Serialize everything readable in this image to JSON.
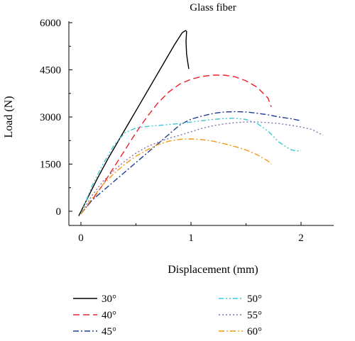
{
  "chart_data": {
    "type": "line",
    "title": "Glass fiber",
    "xlabel": "Displacement (mm)",
    "ylabel": "Load (N)",
    "xlim": [
      -0.1,
      2.3
    ],
    "ylim": [
      -400,
      6000
    ],
    "xticks": [
      0,
      1,
      2
    ],
    "yticks": [
      0,
      1500,
      3000,
      4500,
      6000
    ],
    "grid": false,
    "legend_position": "bottom",
    "series": [
      {
        "name": "30°",
        "color": "#000000",
        "dash": "solid",
        "points": [
          [
            -0.02,
            -150
          ],
          [
            0.05,
            350
          ],
          [
            0.15,
            1050
          ],
          [
            0.25,
            1700
          ],
          [
            0.35,
            2300
          ],
          [
            0.45,
            2900
          ],
          [
            0.55,
            3500
          ],
          [
            0.65,
            4100
          ],
          [
            0.75,
            4700
          ],
          [
            0.85,
            5300
          ],
          [
            0.92,
            5680
          ],
          [
            0.95,
            5750
          ],
          [
            0.96,
            5720
          ],
          [
            0.955,
            5400
          ],
          [
            0.96,
            5000
          ],
          [
            0.97,
            4750
          ],
          [
            0.98,
            4530
          ]
        ]
      },
      {
        "name": "40°",
        "color": "#e8202a",
        "dash": "long-dash",
        "points": [
          [
            0,
            -80
          ],
          [
            0.1,
            350
          ],
          [
            0.2,
            850
          ],
          [
            0.3,
            1400
          ],
          [
            0.4,
            1950
          ],
          [
            0.5,
            2500
          ],
          [
            0.6,
            3000
          ],
          [
            0.7,
            3450
          ],
          [
            0.8,
            3800
          ],
          [
            0.9,
            4050
          ],
          [
            1.0,
            4200
          ],
          [
            1.1,
            4290
          ],
          [
            1.2,
            4330
          ],
          [
            1.3,
            4330
          ],
          [
            1.4,
            4280
          ],
          [
            1.5,
            4150
          ],
          [
            1.6,
            3950
          ],
          [
            1.7,
            3600
          ],
          [
            1.73,
            3320
          ]
        ]
      },
      {
        "name": "45°",
        "color": "#1f3b8f",
        "dash": "dash-dot",
        "points": [
          [
            0,
            -80
          ],
          [
            0.1,
            350
          ],
          [
            0.2,
            650
          ],
          [
            0.3,
            950
          ],
          [
            0.4,
            1250
          ],
          [
            0.5,
            1550
          ],
          [
            0.6,
            1850
          ],
          [
            0.7,
            2150
          ],
          [
            0.8,
            2450
          ],
          [
            0.9,
            2750
          ],
          [
            1.0,
            2930
          ],
          [
            1.1,
            3030
          ],
          [
            1.2,
            3110
          ],
          [
            1.3,
            3160
          ],
          [
            1.4,
            3170
          ],
          [
            1.5,
            3160
          ],
          [
            1.6,
            3120
          ],
          [
            1.7,
            3070
          ],
          [
            1.8,
            3000
          ],
          [
            1.9,
            2950
          ],
          [
            2.0,
            2880
          ]
        ]
      },
      {
        "name": "50°",
        "color": "#3fc8d6",
        "dash": "dash-dot-dot",
        "points": [
          [
            0,
            -80
          ],
          [
            0.1,
            800
          ],
          [
            0.2,
            1500
          ],
          [
            0.3,
            2100
          ],
          [
            0.4,
            2500
          ],
          [
            0.5,
            2650
          ],
          [
            0.6,
            2700
          ],
          [
            0.7,
            2730
          ],
          [
            0.8,
            2760
          ],
          [
            0.9,
            2790
          ],
          [
            1.0,
            2840
          ],
          [
            1.1,
            2880
          ],
          [
            1.2,
            2920
          ],
          [
            1.3,
            2950
          ],
          [
            1.4,
            2960
          ],
          [
            1.5,
            2920
          ],
          [
            1.6,
            2800
          ],
          [
            1.7,
            2550
          ],
          [
            1.8,
            2200
          ],
          [
            1.9,
            1970
          ],
          [
            1.95,
            1920
          ],
          [
            2.0,
            1930
          ]
        ]
      },
      {
        "name": "55°",
        "color": "#8a6fa8",
        "dash": "dotted",
        "points": [
          [
            0,
            -80
          ],
          [
            0.1,
            500
          ],
          [
            0.2,
            950
          ],
          [
            0.3,
            1300
          ],
          [
            0.4,
            1600
          ],
          [
            0.5,
            1850
          ],
          [
            0.6,
            2050
          ],
          [
            0.7,
            2200
          ],
          [
            0.8,
            2320
          ],
          [
            0.9,
            2420
          ],
          [
            1.0,
            2530
          ],
          [
            1.1,
            2640
          ],
          [
            1.2,
            2720
          ],
          [
            1.3,
            2780
          ],
          [
            1.4,
            2820
          ],
          [
            1.5,
            2840
          ],
          [
            1.6,
            2840
          ],
          [
            1.7,
            2820
          ],
          [
            1.8,
            2790
          ],
          [
            1.9,
            2740
          ],
          [
            2.0,
            2680
          ],
          [
            2.1,
            2600
          ],
          [
            2.2,
            2420
          ]
        ]
      },
      {
        "name": "60°",
        "color": "#f29a16",
        "dash": "dash-dot",
        "points": [
          [
            0,
            -80
          ],
          [
            0.1,
            400
          ],
          [
            0.2,
            850
          ],
          [
            0.3,
            1200
          ],
          [
            0.4,
            1500
          ],
          [
            0.5,
            1750
          ],
          [
            0.6,
            1950
          ],
          [
            0.7,
            2120
          ],
          [
            0.8,
            2230
          ],
          [
            0.9,
            2290
          ],
          [
            1.0,
            2300
          ],
          [
            1.1,
            2280
          ],
          [
            1.2,
            2230
          ],
          [
            1.3,
            2150
          ],
          [
            1.4,
            2060
          ],
          [
            1.5,
            1950
          ],
          [
            1.6,
            1800
          ],
          [
            1.7,
            1600
          ],
          [
            1.73,
            1500
          ]
        ]
      }
    ]
  }
}
